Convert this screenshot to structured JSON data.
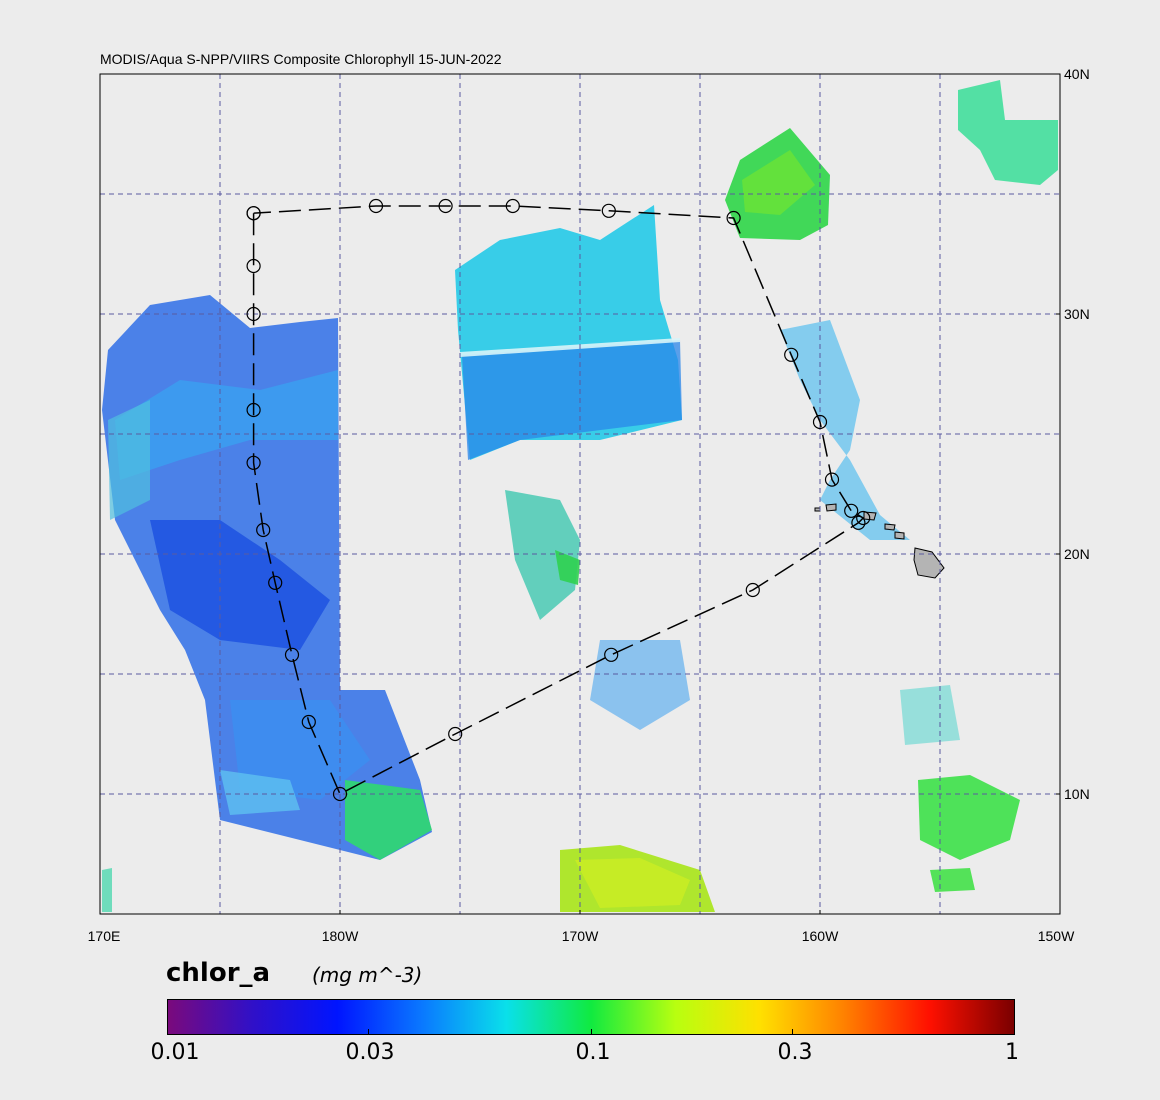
{
  "map": {
    "title": "MODIS/Aqua S-NPP/VIIRS Composite Chlorophyll 15-JUN-2022",
    "lat_labels": [
      "40N",
      "30N",
      "20N",
      "10N"
    ],
    "lon_labels": [
      "170E",
      "180W",
      "170W",
      "160W",
      "150W"
    ],
    "extent": {
      "lon_min": 170,
      "lon_max": 210,
      "lat_min": 5,
      "lat_max": 40
    },
    "gridlines": "dashed",
    "grid_color": "#5a5aa0",
    "track_points": [
      [
        176.4,
        34.2
      ],
      [
        176.4,
        32.0
      ],
      [
        176.4,
        30.0
      ],
      [
        176.4,
        26.0
      ],
      [
        176.4,
        23.8
      ],
      [
        176.8,
        21.0
      ],
      [
        177.3,
        18.8
      ],
      [
        178.0,
        15.8
      ],
      [
        178.7,
        13.0
      ],
      [
        180.0,
        10.0
      ],
      [
        184.8,
        12.5
      ],
      [
        191.3,
        15.8
      ],
      [
        197.2,
        18.5
      ],
      [
        201.6,
        21.3
      ],
      [
        201.8,
        21.5
      ],
      [
        201.3,
        21.8
      ],
      [
        200.5,
        23.1
      ],
      [
        200.0,
        25.5
      ],
      [
        198.8,
        28.3
      ],
      [
        196.4,
        34.0
      ],
      [
        191.2,
        34.3
      ],
      [
        187.2,
        34.5
      ],
      [
        184.4,
        34.5
      ],
      [
        181.5,
        34.5
      ],
      [
        176.4,
        34.2
      ]
    ]
  },
  "colorbar": {
    "variable": "chlor_a",
    "units": "(mg m^-3)",
    "tick_labels": [
      "0.01",
      "0.03",
      "0.1",
      "0.3",
      "1"
    ],
    "tick_values": [
      0.01,
      0.03,
      0.1,
      0.3,
      1
    ],
    "scale": "log",
    "colors": [
      "#7a0a7c",
      "#3010c8",
      "#0014ff",
      "#0a78ff",
      "#0ae0ea",
      "#10ea40",
      "#b8ff10",
      "#ffe000",
      "#ff8000",
      "#ff1000",
      "#7a0000"
    ]
  }
}
